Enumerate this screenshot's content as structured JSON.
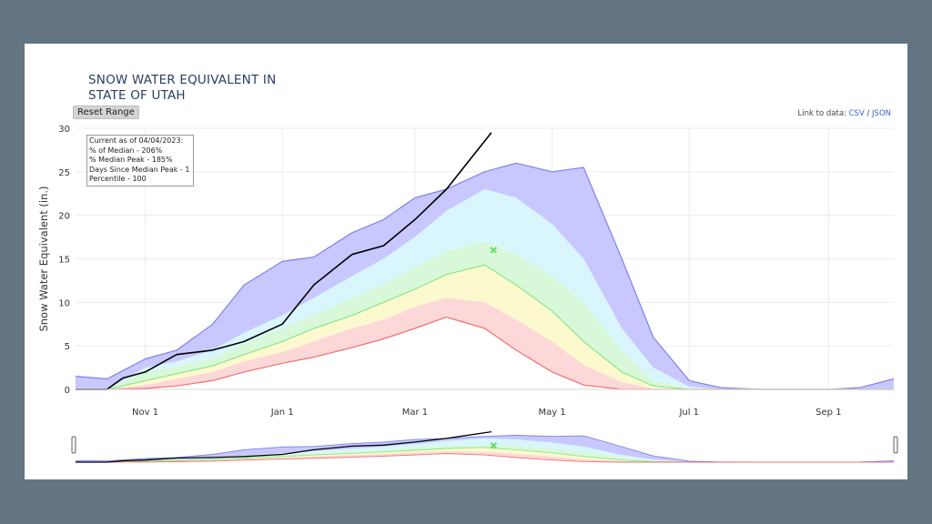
{
  "page": {
    "title_line1": "SNOW WATER EQUIVALENT IN",
    "title_line2": "STATE OF UTAH",
    "reset_label": "Reset Range",
    "links_prefix": "Link to data:",
    "link_csv": "CSV",
    "link_sep": "/",
    "link_json": "JSON"
  },
  "info_box": {
    "line1": "Current as of 04/04/2023:",
    "line2": "% of Median - 206%",
    "line3": "% Median Peak - 185%",
    "line4": "Days Since Median Peak - 1",
    "line5": "Percentile - 100"
  },
  "chart_data": {
    "type": "area",
    "title": "SNOW WATER EQUIVALENT IN STATE OF UTAH",
    "ylabel": "Snow Water Equivalent (in.)",
    "xlabel": "",
    "ylim": [
      0,
      30
    ],
    "xlim": [
      "Oct 1",
      "Sep 30"
    ],
    "x_ticks": [
      "Nov 1",
      "Jan 1",
      "Mar 1",
      "May 1",
      "Jul 1",
      "Sep 1"
    ],
    "y_ticks": [
      0,
      5,
      10,
      15,
      20,
      25,
      30
    ],
    "grid": true,
    "colors": {
      "max_band": "#c8c8ff",
      "max_line": "#8080ee",
      "upper_band": "#d8f6fc",
      "upper_mid_band": "#d9f8d9",
      "mid_band": "#fdf9cf",
      "lower_band": "#fdd8d8",
      "median": "#88e888",
      "min": "#f07070",
      "current": "#000000",
      "median_peak": "#66dd66"
    },
    "x": [
      "Oct 1",
      "Oct 15",
      "Nov 1",
      "Nov 15",
      "Dec 1",
      "Dec 15",
      "Jan 1",
      "Jan 15",
      "Feb 1",
      "Feb 15",
      "Mar 1",
      "Mar 15",
      "Apr 1",
      "Apr 15",
      "May 1",
      "May 15",
      "Jun 1",
      "Jun 15",
      "Jul 1",
      "Jul 15",
      "Aug 1",
      "Aug 15",
      "Sep 1",
      "Sep 15",
      "Sep 30"
    ],
    "series": [
      {
        "values": [
          1.5,
          1.2,
          3.5,
          4.5,
          7.5,
          12,
          14.7,
          15.2,
          18,
          19.5,
          22,
          23,
          25,
          26,
          25,
          25.5,
          15,
          6,
          1,
          0.2,
          0,
          0,
          0,
          0.2,
          1.2
        ]
      },
      {
        "values": [
          0,
          0,
          2.5,
          3.2,
          4.5,
          6.5,
          8.5,
          10.5,
          13,
          15,
          17.5,
          20.5,
          23,
          22,
          19,
          15,
          7,
          2.5,
          0.3,
          0,
          0,
          0,
          0,
          0,
          0
        ]
      },
      {
        "values": [
          0,
          0,
          2,
          2.6,
          3.6,
          5.3,
          7,
          8.5,
          10.5,
          12,
          14,
          15.8,
          17,
          15.5,
          13,
          10,
          4.5,
          1,
          0.1,
          0,
          0,
          0,
          0,
          0,
          0
        ]
      },
      {
        "values": [
          0,
          0,
          1,
          1.8,
          2.7,
          4,
          5.5,
          7,
          8.5,
          10,
          11.5,
          13.2,
          14.3,
          12,
          9,
          5.5,
          2,
          0.4,
          0,
          0,
          0,
          0,
          0,
          0,
          0
        ]
      },
      {
        "values": [
          0,
          0,
          0.5,
          1.2,
          2,
          3.2,
          4.3,
          5.5,
          7,
          8,
          9.5,
          10.5,
          10,
          8,
          5.5,
          2.8,
          0.8,
          0.1,
          0,
          0,
          0,
          0,
          0,
          0,
          0
        ]
      },
      {
        "values": [
          0,
          0,
          0.1,
          0.4,
          1,
          2,
          3,
          3.7,
          4.8,
          5.8,
          7,
          8.3,
          7,
          4.5,
          2,
          0.5,
          0,
          0,
          0,
          0,
          0,
          0,
          0,
          0,
          0
        ]
      },
      {
        "name": "2023",
        "x": [
          "Oct 1",
          "Oct 15",
          "Oct 22",
          "Nov 1",
          "Nov 15",
          "Dec 1",
          "Dec 15",
          "Jan 1",
          "Jan 15",
          "Feb 1",
          "Feb 15",
          "Mar 1",
          "Mar 15",
          "Apr 4"
        ],
        "values": [
          0,
          0,
          1.3,
          2,
          4,
          4.5,
          5.5,
          7.5,
          12,
          15.5,
          16.5,
          19.5,
          23,
          29.5
        ]
      }
    ],
    "median_peak": {
      "x": "Apr 5",
      "y": 16
    }
  }
}
